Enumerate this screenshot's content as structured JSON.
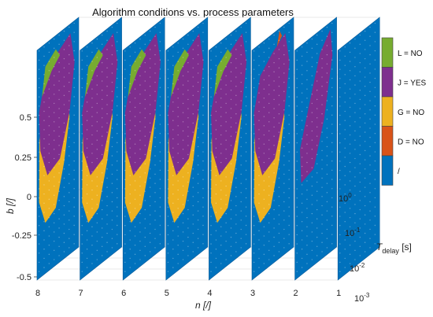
{
  "chart_data": {
    "type": "scatter",
    "title": "Algorithm conditions vs. process parameters",
    "x_axis": {
      "label": "n [/]",
      "ticks": [
        "8",
        "7",
        "6",
        "5",
        "4",
        "3",
        "2",
        "1"
      ]
    },
    "y_axis": {
      "label_main": "T",
      "label_sub": "delay",
      "label_unit": " [s]",
      "ticks": [
        {
          "base": "10",
          "exp": "-3"
        },
        {
          "base": "10",
          "exp": "-2"
        },
        {
          "base": "10",
          "exp": "-1"
        },
        {
          "base": "10",
          "exp": "0"
        }
      ],
      "scale": "log",
      "range": [
        0.001,
        1
      ]
    },
    "z_axis": {
      "label": "b [/]",
      "ticks": [
        "-0.5",
        "-0.25",
        "0",
        "0.25",
        "0.5"
      ],
      "range": [
        -0.5,
        0.5
      ]
    },
    "legend": {
      "placement": "right",
      "entries": [
        {
          "label": "L = NO",
          "color": "#77ac30"
        },
        {
          "label": "J = YES",
          "color": "#7e2f8e"
        },
        {
          "label": "G = NO",
          "color": "#edb120"
        },
        {
          "label": "D = NO",
          "color": "#d95319"
        },
        {
          "label": "/",
          "color": "#0072bd"
        }
      ]
    },
    "colors": {
      "L": "#77ac30",
      "J": "#7e2f8e",
      "G": "#edb120",
      "D": "#d95319",
      "none": "#0072bd"
    },
    "series": [
      {
        "n": 8,
        "regions": [
          "none",
          "G",
          "J",
          "L"
        ]
      },
      {
        "n": 7,
        "regions": [
          "none",
          "G",
          "J",
          "L"
        ]
      },
      {
        "n": 6,
        "regions": [
          "none",
          "G",
          "J",
          "L"
        ]
      },
      {
        "n": 5,
        "regions": [
          "none",
          "G",
          "J",
          "L"
        ]
      },
      {
        "n": 4,
        "regions": [
          "none",
          "G",
          "J",
          "L"
        ]
      },
      {
        "n": 3,
        "regions": [
          "none",
          "G",
          "J",
          "D"
        ]
      },
      {
        "n": 2,
        "regions": [
          "none",
          "J"
        ]
      },
      {
        "n": 1,
        "regions": [
          "none"
        ]
      }
    ],
    "grid": true
  }
}
